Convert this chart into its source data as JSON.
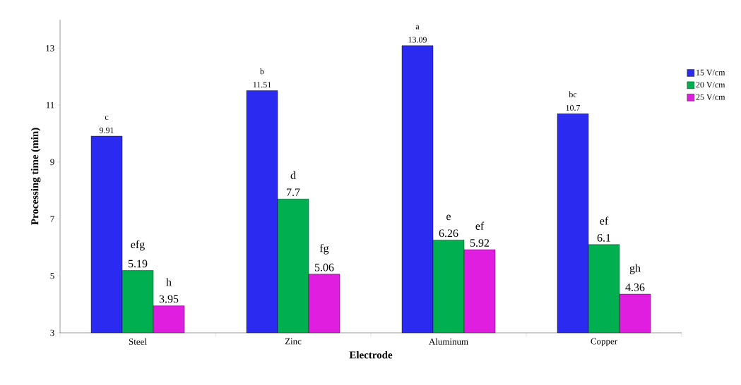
{
  "chart_data": {
    "type": "bar",
    "xlabel": "Electrode",
    "ylabel": "Processing time (min)",
    "categories": [
      "Steel",
      "Zinc",
      "Aluminum",
      "Copper"
    ],
    "series": [
      {
        "name": "15 V/cm",
        "color": "#2a2af0",
        "values": [
          9.91,
          11.51,
          13.09,
          10.7
        ]
      },
      {
        "name": "20 V/cm",
        "color": "#00b050",
        "values": [
          5.19,
          7.7,
          6.26,
          6.1
        ]
      },
      {
        "name": "25 V/cm",
        "color": "#e01ee0",
        "values": [
          3.95,
          5.06,
          5.92,
          4.36
        ]
      }
    ],
    "ylim": [
      3,
      14
    ],
    "yticks": [
      3,
      5,
      7,
      9,
      11,
      13
    ],
    "data_labels": true,
    "legend": "right",
    "grid": false,
    "annotations": [
      "c",
      "b",
      "a",
      "bc",
      "efg",
      "d",
      "e",
      "ef",
      "h",
      "fg",
      "ef",
      "gh"
    ]
  }
}
